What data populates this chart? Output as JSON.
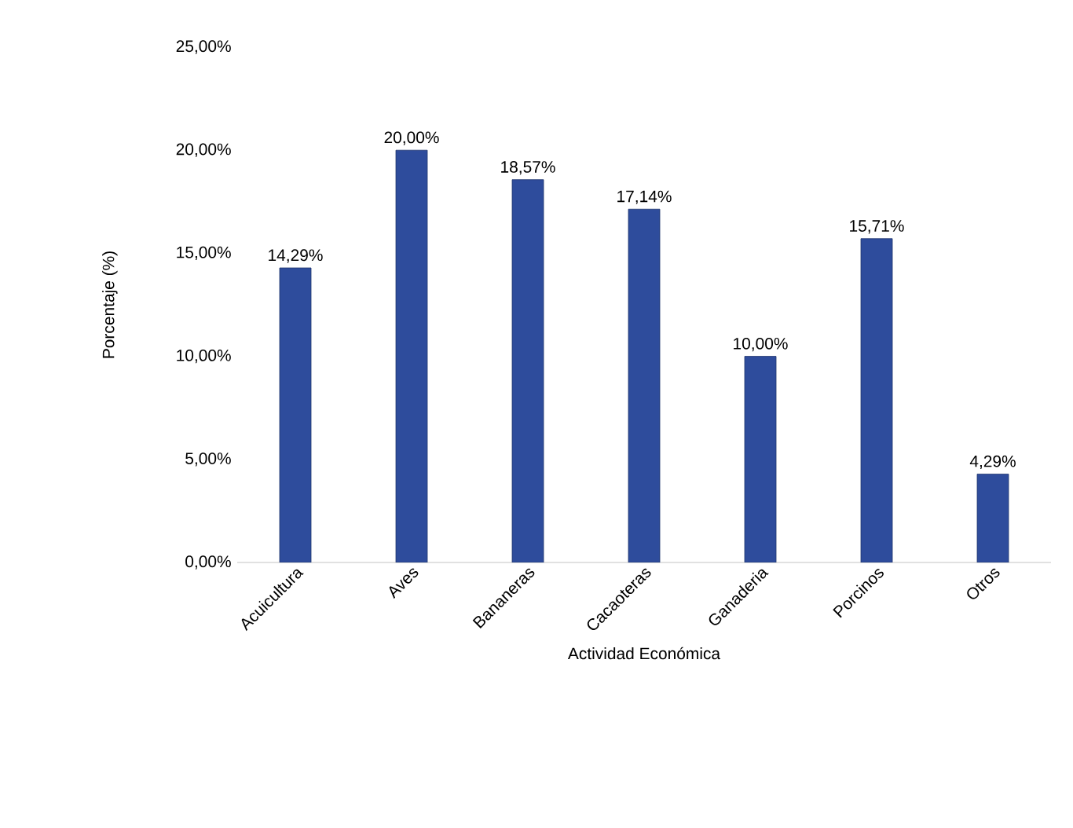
{
  "chart_data": {
    "type": "bar",
    "xlabel": "Actividad Económica",
    "ylabel": "Porcentaje (%)",
    "categories": [
      "Acuicultura",
      "Aves",
      "Bananeras",
      "Cacaoteras",
      "Ganaderia",
      "Porcinos",
      "Otros"
    ],
    "values": [
      14.29,
      20.0,
      18.57,
      17.14,
      10.0,
      15.71,
      4.29
    ],
    "value_labels": [
      "14,29%",
      "20,00%",
      "18,57%",
      "17,14%",
      "10,00%",
      "15,71%",
      "4,29%"
    ],
    "color": "#2e4c9c",
    "ylim": [
      0,
      25
    ],
    "yticks": [
      {
        "value": 0,
        "label": "0,00%"
      },
      {
        "value": 5,
        "label": "5,00%"
      },
      {
        "value": 10,
        "label": "10,00%"
      },
      {
        "value": 15,
        "label": "15,00%"
      },
      {
        "value": 20,
        "label": "20,00%"
      },
      {
        "value": 25,
        "label": "25,00%"
      }
    ]
  }
}
